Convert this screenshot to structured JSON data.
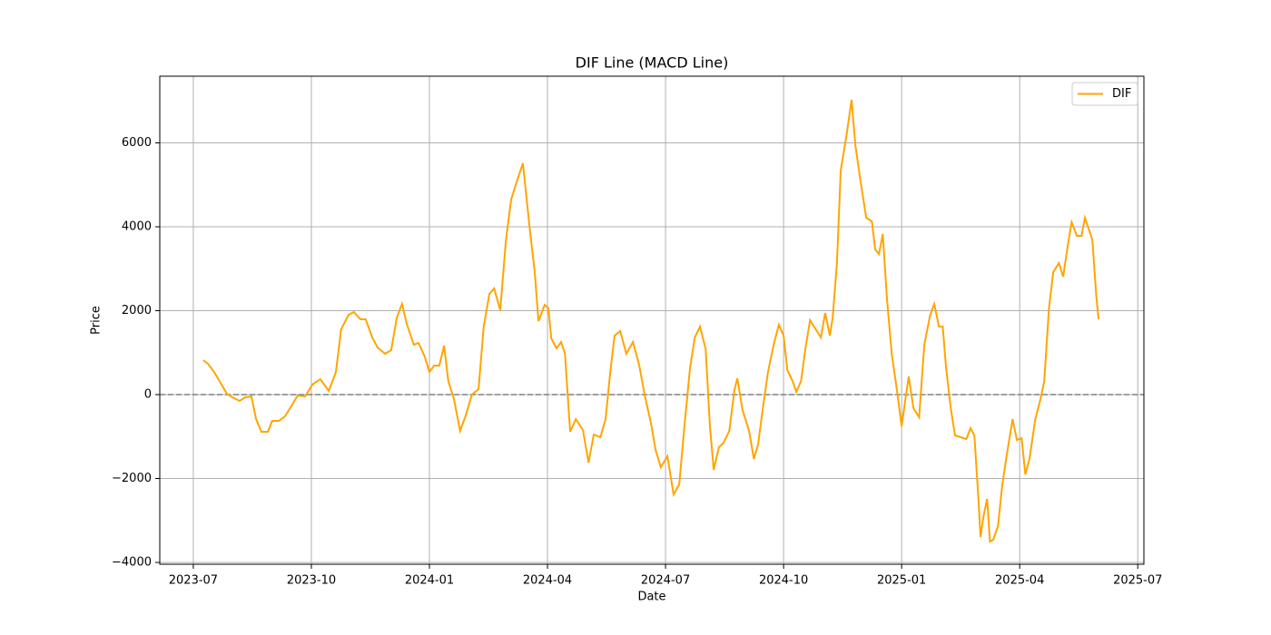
{
  "chart_data": {
    "type": "line",
    "title": "DIF Line (MACD Line)",
    "xlabel": "Date",
    "ylabel": "Price",
    "x": [
      2023.521,
      2023.531,
      2023.544,
      2023.56,
      2023.571,
      2023.583,
      2023.598,
      2023.61,
      2023.623,
      2023.633,
      2023.644,
      2023.658,
      2023.667,
      2023.681,
      2023.694,
      2023.706,
      2023.721,
      2023.737,
      2023.752,
      2023.769,
      2023.787,
      2023.802,
      2023.813,
      2023.829,
      2023.84,
      2023.854,
      2023.865,
      2023.879,
      2023.89,
      2023.906,
      2023.919,
      2023.931,
      2023.942,
      2023.952,
      2023.967,
      2023.977,
      2023.99,
      2024.0,
      2024.01,
      2024.021,
      2024.031,
      2024.04,
      2024.052,
      2024.065,
      2024.077,
      2024.09,
      2024.104,
      2024.115,
      2024.127,
      2024.137,
      2024.15,
      2024.162,
      2024.173,
      2024.187,
      2024.198,
      2024.212,
      2024.223,
      2024.231,
      2024.244,
      2024.252,
      2024.258,
      2024.269,
      2024.279,
      2024.287,
      2024.298,
      2024.31,
      2024.325,
      2024.337,
      2024.348,
      2024.362,
      2024.373,
      2024.383,
      2024.392,
      2024.404,
      2024.417,
      2024.431,
      2024.444,
      2024.456,
      2024.469,
      2024.479,
      2024.49,
      2024.504,
      2024.517,
      2024.529,
      2024.54,
      2024.552,
      2024.562,
      2024.573,
      2024.585,
      2024.594,
      2024.602,
      2024.613,
      2024.623,
      2024.635,
      2024.646,
      2024.652,
      2024.663,
      2024.677,
      2024.687,
      2024.696,
      2024.706,
      2024.717,
      2024.729,
      2024.74,
      2024.75,
      2024.758,
      2024.769,
      2024.777,
      2024.787,
      2024.796,
      2024.806,
      2024.817,
      2024.829,
      2024.838,
      2024.848,
      2024.854,
      2024.863,
      2024.871,
      2024.883,
      2024.894,
      2024.902,
      2024.913,
      2024.925,
      2024.937,
      2024.944,
      2024.952,
      2024.96,
      2024.969,
      2024.979,
      2024.99,
      2025.0,
      2025.008,
      2025.015,
      2025.025,
      2025.037,
      2025.048,
      2025.06,
      2025.069,
      2025.079,
      2025.087,
      2025.094,
      2025.104,
      2025.113,
      2025.125,
      2025.137,
      2025.146,
      2025.154,
      2025.162,
      2025.167,
      2025.173,
      2025.181,
      2025.187,
      2025.194,
      2025.204,
      2025.213,
      2025.223,
      2025.235,
      2025.244,
      2025.254,
      2025.262,
      2025.271,
      2025.283,
      2025.294,
      2025.302,
      2025.312,
      2025.321,
      2025.333,
      2025.342,
      2025.352,
      2025.36,
      2025.371,
      2025.381,
      2025.388,
      2025.398,
      2025.404,
      2025.412,
      2025.417
    ],
    "series": [
      {
        "name": "DIF",
        "color": "#ffa500",
        "values": [
          822,
          735,
          540,
          238,
          22,
          -65,
          -151,
          -65,
          -43,
          -584,
          -886,
          -886,
          -627,
          -627,
          -519,
          -303,
          -22,
          -43,
          238,
          368,
          86,
          540,
          1557,
          1903,
          1968,
          1795,
          1795,
          1362,
          1124,
          973,
          1059,
          1838,
          2162,
          1686,
          1189,
          1232,
          908,
          540,
          692,
          692,
          1168,
          324,
          -108,
          -865,
          -497,
          0,
          130,
          1622,
          2400,
          2530,
          2011,
          3676,
          4649,
          5146,
          5514,
          4000,
          2919,
          1751,
          2141,
          2054,
          1341,
          1103,
          1254,
          973,
          -886,
          -584,
          -843,
          -1622,
          -951,
          -1016,
          -584,
          540,
          1405,
          1514,
          973,
          1254,
          714,
          -22,
          -670,
          -1319,
          -1730,
          -1470,
          -2378,
          -2141,
          -757,
          649,
          1362,
          1622,
          1081,
          -757,
          -1795,
          -1254,
          -1146,
          -865,
          108,
          389,
          -368,
          -865,
          -1535,
          -1189,
          -324,
          540,
          1189,
          1665,
          1405,
          584,
          324,
          65,
          324,
          1081,
          1773,
          1578,
          1362,
          1946,
          1405,
          1838,
          3135,
          5341,
          6162,
          7027,
          5946,
          5081,
          4216,
          4130,
          3459,
          3351,
          3827,
          2270,
          973,
          108,
          -757,
          -108,
          432,
          -324,
          -541,
          1189,
          1881,
          2162,
          1622,
          1622,
          649,
          -324,
          -973,
          -1016,
          -1059,
          -800,
          -973,
          -2378,
          -3395,
          -2919,
          -2486,
          -3503,
          -3459,
          -3135,
          -2162,
          -1405,
          -584,
          -1081,
          -1038,
          -1903,
          -1514,
          -584,
          -108,
          324,
          2054,
          2919,
          3135,
          2811,
          3568,
          4108,
          3784,
          3784,
          4216,
          3892,
          3676,
          2378,
          1795
        ]
      }
    ],
    "hline": 0,
    "xlim": [
      2023.429,
      2025.513
    ],
    "xticks": [
      {
        "value": 2023.5,
        "label": "2023-07"
      },
      {
        "value": 2023.75,
        "label": "2023-10"
      },
      {
        "value": 2024.0,
        "label": "2024-01"
      },
      {
        "value": 2024.25,
        "label": "2024-04"
      },
      {
        "value": 2024.5,
        "label": "2024-07"
      },
      {
        "value": 2024.75,
        "label": "2024-10"
      },
      {
        "value": 2025.0,
        "label": "2025-01"
      },
      {
        "value": 2025.25,
        "label": "2025-04"
      },
      {
        "value": 2025.5,
        "label": "2025-07"
      }
    ],
    "ylim": [
      -4043,
      7589
    ],
    "yticks": [
      {
        "value": -4000,
        "label": "−4000"
      },
      {
        "value": -2000,
        "label": "−2000"
      },
      0,
      2000,
      4000,
      6000
    ],
    "grid": true,
    "legend": "upper right"
  }
}
